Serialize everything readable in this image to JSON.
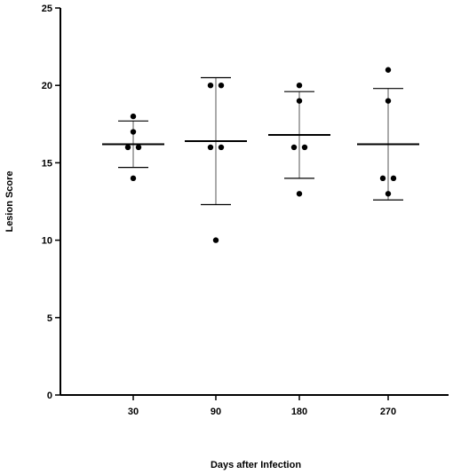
{
  "chart_data": {
    "type": "scatter",
    "xlabel": "Days after Infection",
    "ylabel": "Lesion Score",
    "ylim": [
      0,
      25
    ],
    "y_ticks": [
      0,
      5,
      10,
      15,
      20,
      25
    ],
    "grid": false,
    "legend": "none",
    "categories": [
      "30",
      "90",
      "180",
      "270"
    ],
    "groups": [
      {
        "category": "30",
        "points": [
          18,
          17,
          16,
          16,
          14
        ],
        "mean": 16.2,
        "error_low": 14.7,
        "error_high": 17.7
      },
      {
        "category": "90",
        "points": [
          20,
          20,
          16,
          16,
          10
        ],
        "mean": 16.4,
        "error_low": 12.3,
        "error_high": 20.5
      },
      {
        "category": "180",
        "points": [
          20,
          19,
          16,
          16,
          13
        ],
        "mean": 16.8,
        "error_low": 14.0,
        "error_high": 19.6
      },
      {
        "category": "270",
        "points": [
          21,
          19,
          14,
          14,
          13
        ],
        "mean": 16.2,
        "error_low": 12.6,
        "error_high": 19.8
      }
    ],
    "colors": {
      "points": "#000000",
      "axes": "#000000",
      "error_bars": "#555555"
    }
  }
}
